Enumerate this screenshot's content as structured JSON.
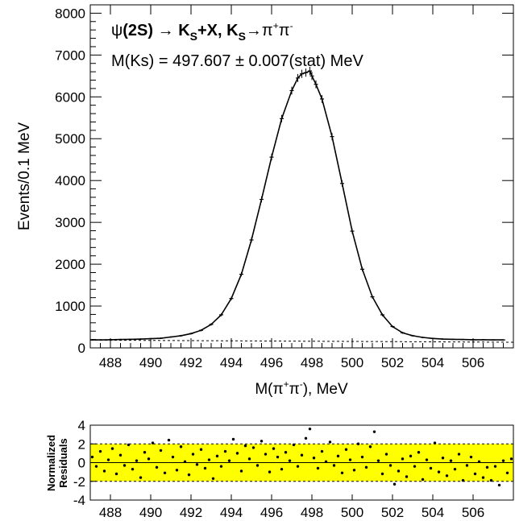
{
  "chart_data": [
    {
      "type": "scatter",
      "panel": "main",
      "title": "",
      "annotation_line1": {
        "psi": "ψ",
        "state": "(2S)",
        "arrow1": " → ",
        "ks1": "K",
        "sub1": "S",
        "plusx": "+X, ",
        "ks2": "K",
        "sub2": "S",
        "arrow2": "→",
        "pi1": "π",
        "sup1": "+",
        "pi2": "π",
        "sup2": "-"
      },
      "annotation_line2": "M(Ks) = 497.607 ± 0.007(stat) MeV",
      "xlabel": {
        "prefix": "M(",
        "pi1": "π",
        "sup1": "+",
        "pi2": "π",
        "sup2": "-",
        "suffix": "), MeV"
      },
      "ylabel": "Events/0.1 MeV",
      "xlim": [
        487.0,
        508.0
      ],
      "ylim": [
        0,
        8200
      ],
      "x_ticks": [
        "488",
        "490",
        "492",
        "494",
        "496",
        "498",
        "500",
        "502",
        "504",
        "506"
      ],
      "y_ticks": [
        "0",
        "1000",
        "2000",
        "3000",
        "4000",
        "5000",
        "6000",
        "7000",
        "8000"
      ],
      "series": [
        {
          "style": "data-points-with-errors",
          "x": [
            487.1,
            487.5,
            488.0,
            488.5,
            489.0,
            489.5,
            490.0,
            490.5,
            491.0,
            491.5,
            492.0,
            492.5,
            493.0,
            493.5,
            494.0,
            494.5,
            495.0,
            495.5,
            496.0,
            496.5,
            497.0,
            497.3,
            497.5,
            497.7,
            497.9,
            498.0,
            498.2,
            498.5,
            499.0,
            499.5,
            500.0,
            500.5,
            501.0,
            501.5,
            502.0,
            502.5,
            503.0,
            503.5,
            504.0,
            504.5,
            505.0,
            505.5,
            506.0,
            506.5,
            507.0,
            507.5
          ],
          "y": [
            190,
            190,
            195,
            200,
            205,
            210,
            220,
            230,
            260,
            290,
            340,
            420,
            560,
            790,
            1180,
            1760,
            2580,
            3550,
            4560,
            5480,
            6150,
            6450,
            6550,
            6580,
            6620,
            6500,
            6300,
            5950,
            5050,
            3930,
            2790,
            1880,
            1220,
            790,
            510,
            360,
            290,
            250,
            225,
            210,
            205,
            200,
            195,
            195,
            190,
            190
          ]
        },
        {
          "style": "fit-curve",
          "peak_x": 497.607,
          "peak_y": 6530
        },
        {
          "style": "background-dashed",
          "x": [
            487.0,
            508.0
          ],
          "y": [
            185,
            135
          ]
        }
      ]
    },
    {
      "type": "scatter",
      "panel": "residuals",
      "ylabel_line1": "Normalized",
      "ylabel_line2": "Residuals",
      "xlim": [
        487.0,
        508.0
      ],
      "ylim": [
        -4,
        4
      ],
      "x_ticks": [
        "488",
        "490",
        "492",
        "494",
        "496",
        "498",
        "500",
        "502",
        "504",
        "506"
      ],
      "y_ticks": [
        "-4",
        "-2",
        "0",
        "2",
        "4"
      ],
      "band": [
        -2,
        2
      ],
      "band_color": "#ffff00",
      "x": [
        487.1,
        487.3,
        487.5,
        487.7,
        487.9,
        488.1,
        488.3,
        488.5,
        488.7,
        488.9,
        489.1,
        489.3,
        489.5,
        489.7,
        489.9,
        490.1,
        490.3,
        490.5,
        490.7,
        490.9,
        491.1,
        491.3,
        491.5,
        491.7,
        491.9,
        492.1,
        492.3,
        492.5,
        492.7,
        492.9,
        493.1,
        493.3,
        493.5,
        493.7,
        493.9,
        494.1,
        494.3,
        494.5,
        494.7,
        494.9,
        495.1,
        495.3,
        495.5,
        495.7,
        495.9,
        496.1,
        496.3,
        496.5,
        496.7,
        496.9,
        497.1,
        497.3,
        497.5,
        497.7,
        497.9,
        498.1,
        498.3,
        498.5,
        498.7,
        498.9,
        499.1,
        499.3,
        499.5,
        499.7,
        499.9,
        500.1,
        500.3,
        500.5,
        500.7,
        500.9,
        501.1,
        501.3,
        501.5,
        501.7,
        501.9,
        502.1,
        502.3,
        502.5,
        502.7,
        502.9,
        503.1,
        503.3,
        503.5,
        503.7,
        503.9,
        504.1,
        504.3,
        504.5,
        504.7,
        504.9,
        505.1,
        505.3,
        505.5,
        505.7,
        505.9,
        506.1,
        506.3,
        506.5,
        506.7,
        506.9,
        507.1,
        507.3,
        507.5,
        507.7,
        507.9
      ],
      "y": [
        0.6,
        -0.4,
        1.2,
        -0.9,
        0.3,
        1.5,
        -1.2,
        0.8,
        -0.3,
        1.9,
        -0.7,
        0.2,
        -1.6,
        1.1,
        0.4,
        2.1,
        -0.5,
        1.3,
        -1.1,
        2.4,
        0.6,
        -0.8,
        1.7,
        0.1,
        -1.3,
        0.9,
        -0.2,
        1.4,
        -0.6,
        0.3,
        -1.7,
        0.7,
        -0.4,
        1.2,
        0.2,
        2.5,
        1.0,
        -0.9,
        1.8,
        0.4,
        1.6,
        -0.3,
        2.3,
        0.9,
        -1.0,
        1.5,
        0.6,
        -0.7,
        1.1,
        0.2,
        1.9,
        -0.4,
        0.8,
        2.6,
        3.6,
        0.5,
        -0.6,
        1.2,
        0.1,
        2.2,
        -0.3,
        0.7,
        -1.1,
        1.4,
        0.3,
        -0.8,
        2.0,
        0.6,
        -0.5,
        1.7,
        3.3,
        0.2,
        -1.2,
        0.9,
        -0.3,
        -2.3,
        -0.9,
        0.4,
        -1.5,
        0.7,
        -0.4,
        1.1,
        -1.8,
        0.3,
        -0.6,
        2.1,
        -1.0,
        0.5,
        -1.4,
        0.2,
        -0.7,
        0.9,
        -1.9,
        -0.3,
        0.6,
        -1.2,
        0.1,
        -1.6,
        -0.5,
        -1.9,
        -0.4,
        -2.4,
        0.2,
        -1.1,
        0.4
      ]
    }
  ]
}
